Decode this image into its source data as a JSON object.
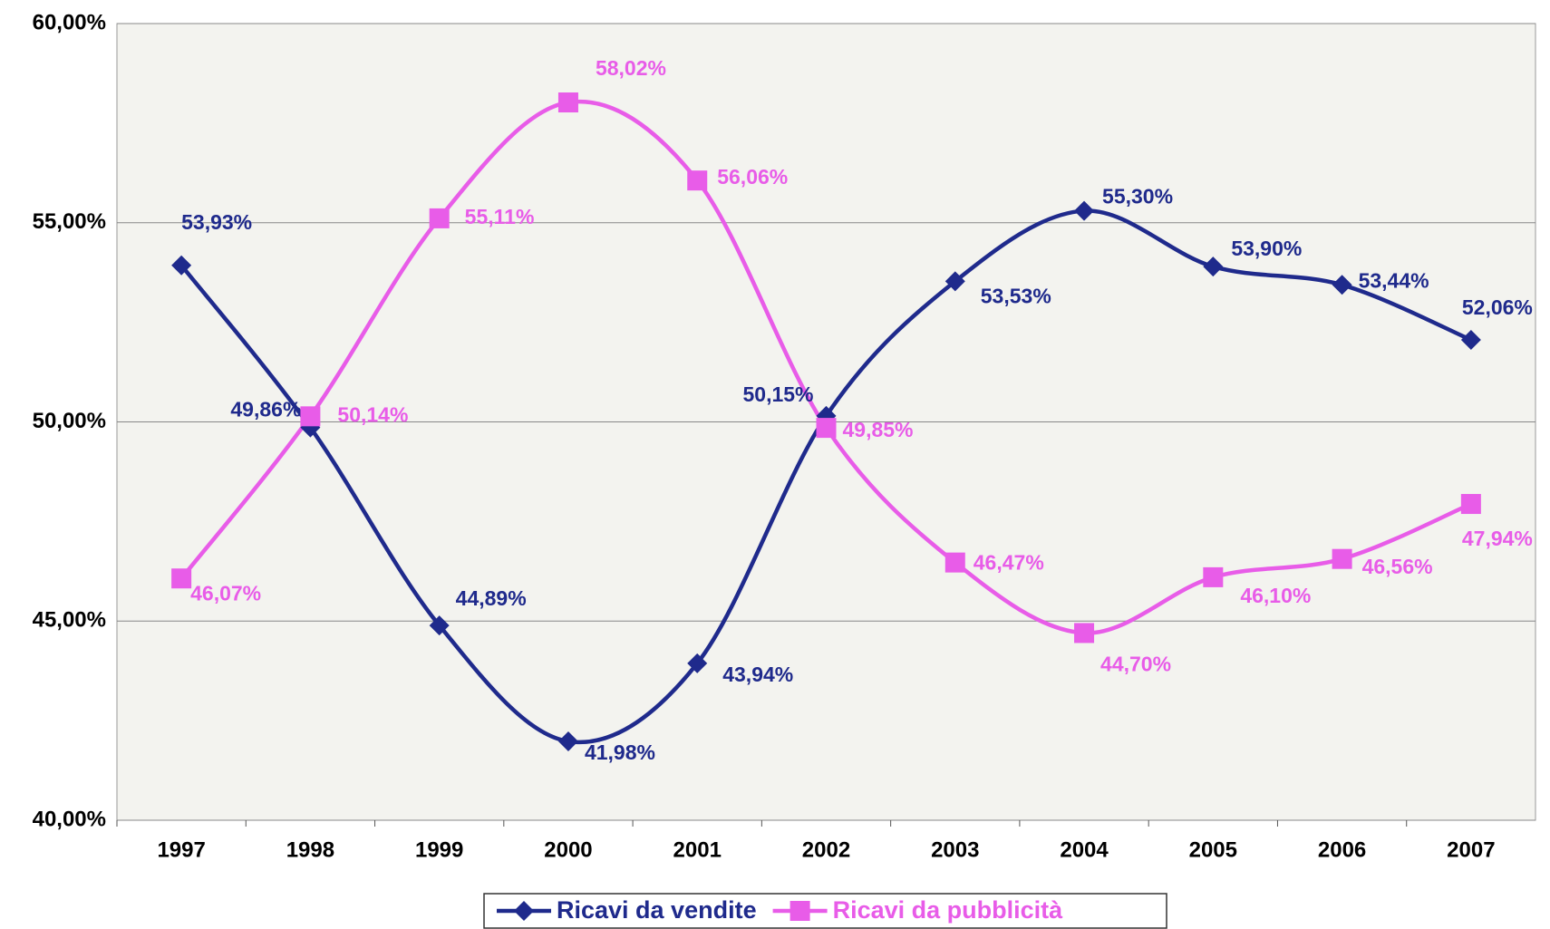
{
  "chart_data": {
    "type": "line",
    "categories": [
      "1997",
      "1998",
      "1999",
      "2000",
      "2001",
      "2002",
      "2003",
      "2004",
      "2005",
      "2006",
      "2007"
    ],
    "series": [
      {
        "name": "Ricavi da vendite",
        "color": "#1f2a8c",
        "marker": "diamond",
        "values": [
          53.93,
          49.86,
          44.89,
          41.98,
          43.94,
          50.15,
          53.53,
          55.3,
          53.9,
          53.44,
          52.06
        ],
        "value_labels": [
          "53,93%",
          "49,86%",
          "44,89%",
          "41,98%",
          "43,94%",
          "50,15%",
          "53,53%",
          "55,30%",
          "53,90%",
          "53,44%",
          "52,06%"
        ]
      },
      {
        "name": "Ricavi da pubblicità",
        "color": "#e85ce8",
        "marker": "square",
        "values": [
          46.07,
          50.14,
          55.11,
          58.02,
          56.06,
          49.85,
          46.47,
          44.7,
          46.1,
          46.56,
          47.94
        ],
        "value_labels": [
          "46,07%",
          "50,14%",
          "55,11%",
          "58,02%",
          "56,06%",
          "49,85%",
          "46,47%",
          "44,70%",
          "46,10%",
          "46,56%",
          "47,94%"
        ]
      }
    ],
    "ylim": [
      40,
      60
    ],
    "yticks": [
      {
        "value": 40,
        "label": "40,00%"
      },
      {
        "value": 45,
        "label": "45,00%"
      },
      {
        "value": 50,
        "label": "50,00%"
      },
      {
        "value": 55,
        "label": "55,00%"
      },
      {
        "value": 60,
        "label": "60,00%"
      }
    ],
    "grid": true,
    "smooth": true,
    "legend": "bottom"
  }
}
